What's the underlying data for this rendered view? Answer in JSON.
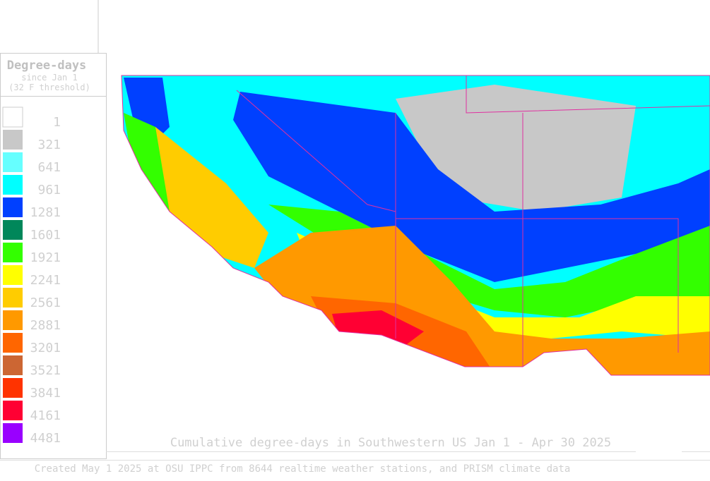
{
  "legend": {
    "title": "Degree-days",
    "subtitle": [
      "since Jan 1",
      "(32 F threshold)"
    ],
    "items": [
      {
        "label": "1",
        "color": "#ffffff"
      },
      {
        "label": "321",
        "color": "#c8c8c8"
      },
      {
        "label": "641",
        "color": "#66ffff"
      },
      {
        "label": "961",
        "color": "#00ffff"
      },
      {
        "label": "1281",
        "color": "#0040ff"
      },
      {
        "label": "1601",
        "color": "#00875a"
      },
      {
        "label": "1921",
        "color": "#33ff00"
      },
      {
        "label": "2241",
        "color": "#ffff00"
      },
      {
        "label": "2561",
        "color": "#ffcc00"
      },
      {
        "label": "2881",
        "color": "#ff9900"
      },
      {
        "label": "3201",
        "color": "#ff6600"
      },
      {
        "label": "3521",
        "color": "#cc6633"
      },
      {
        "label": "3841",
        "color": "#ff3300"
      },
      {
        "label": "4161",
        "color": "#ff0033"
      },
      {
        "label": "4481",
        "color": "#9900ff"
      }
    ]
  },
  "caption": "Cumulative degree-days in Southwestern US Jan 1 - Apr 30 2025",
  "credit": "Created May 1 2025 at OSU IPPC from 8644 realtime weather stations, and PRISM climate data"
}
